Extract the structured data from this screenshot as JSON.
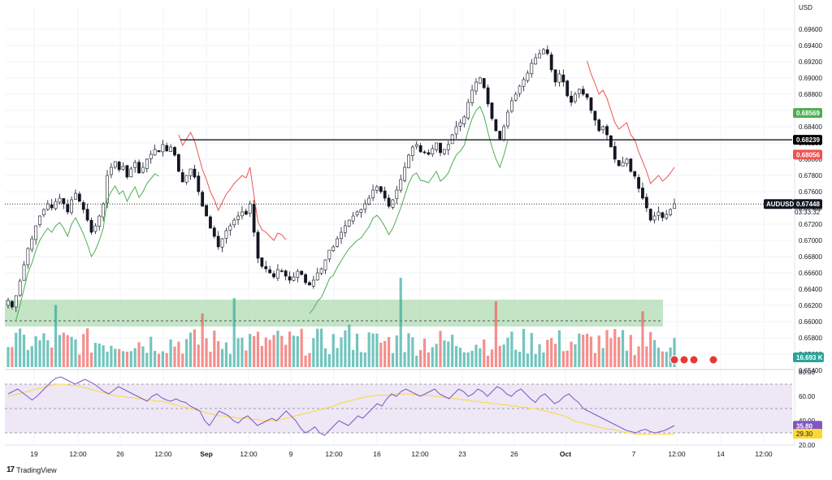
{
  "price_axis": {
    "currency": "USD",
    "ticks": [
      "0.69600",
      "0.69400",
      "0.69200",
      "0.69000",
      "0.68800",
      "0.68600",
      "0.68400",
      "0.68200",
      "0.68000",
      "0.67800",
      "0.67600",
      "0.67400",
      "0.67200",
      "0.67000",
      "0.66800",
      "0.66600",
      "0.66400",
      "0.66200",
      "0.66000",
      "0.65800",
      "0.65600",
      "0.65400"
    ]
  },
  "time_axis": [
    "19",
    "12:00",
    "26",
    "12:00",
    "Sep",
    "12:00",
    "9",
    "12:00",
    "16",
    "12:00",
    "23",
    "26",
    "Oct",
    "7",
    "12:00",
    "14",
    "12:00"
  ],
  "symbol": {
    "name": "AUDUSD",
    "last_price": "0.67448",
    "countdown": "03:33:32",
    "color": "#131722"
  },
  "horizontal_level": {
    "value": "0.68239",
    "color": "#000000"
  },
  "supertrend_labels": {
    "up": {
      "value": "0.68569",
      "color": "#4caf50"
    },
    "down": {
      "value": "0.68056",
      "color": "#ef5350"
    }
  },
  "volume_label": {
    "value": "16.693 K",
    "color": "#26a69a"
  },
  "rsi": {
    "ticks": [
      "80.00",
      "60.00",
      "40.00",
      "20.00"
    ],
    "value": "35.80",
    "value_color": "#7e57c2",
    "ma_value": "29.30",
    "ma_color": "#fdd835",
    "upper": 70,
    "lower": 30,
    "range": [
      20,
      80
    ]
  },
  "branding": {
    "logo_text": "TradingView"
  },
  "colors": {
    "up": "#26a69a",
    "down": "#ef5350",
    "grid": "#f0f3fa",
    "rsi_line": "#7e57c2",
    "rsi_band": "#ede7f6",
    "demand_zone": "#a5d6a7"
  },
  "chart_data": {
    "type": "candlestick",
    "symbol": "AUDUSD",
    "ylim": [
      0.654,
      0.697
    ],
    "demand_zone": [
      0.6594,
      0.6627
    ],
    "level": 0.68239,
    "close_series": [
      0.6626,
      0.6618,
      0.6632,
      0.665,
      0.667,
      0.669,
      0.6702,
      0.6718,
      0.673,
      0.6738,
      0.6745,
      0.674,
      0.6748,
      0.6752,
      0.6745,
      0.6735,
      0.675,
      0.6758,
      0.6748,
      0.6738,
      0.6725,
      0.671,
      0.6718,
      0.673,
      0.6745,
      0.678,
      0.679,
      0.6797,
      0.6787,
      0.6791,
      0.6778,
      0.6788,
      0.6796,
      0.6783,
      0.679,
      0.68,
      0.6806,
      0.6812,
      0.6809,
      0.6818,
      0.681,
      0.6815,
      0.6805,
      0.6785,
      0.6772,
      0.678,
      0.6788,
      0.6778,
      0.676,
      0.6742,
      0.673,
      0.6715,
      0.6705,
      0.6692,
      0.6702,
      0.6712,
      0.6718,
      0.6725,
      0.673,
      0.6735,
      0.6732,
      0.6745,
      0.671,
      0.6678,
      0.6668,
      0.6665,
      0.666,
      0.6655,
      0.6664,
      0.6662,
      0.6656,
      0.6651,
      0.6655,
      0.6662,
      0.6658,
      0.6648,
      0.6645,
      0.6651,
      0.666,
      0.6665,
      0.6676,
      0.6688,
      0.6692,
      0.6702,
      0.671,
      0.6718,
      0.6725,
      0.673,
      0.6735,
      0.6738,
      0.6745,
      0.6752,
      0.6762,
      0.6766,
      0.676,
      0.6752,
      0.6742,
      0.675,
      0.6762,
      0.6775,
      0.679,
      0.6805,
      0.6815,
      0.6818,
      0.6809,
      0.6808,
      0.6806,
      0.6813,
      0.682,
      0.6808,
      0.6812,
      0.6818,
      0.683,
      0.684,
      0.6845,
      0.6852,
      0.687,
      0.6885,
      0.6895,
      0.69,
      0.6888,
      0.6868,
      0.685,
      0.6835,
      0.6825,
      0.684,
      0.6858,
      0.6872,
      0.688,
      0.689,
      0.6898,
      0.6906,
      0.6918,
      0.6925,
      0.693,
      0.6935,
      0.693,
      0.691,
      0.6895,
      0.6905,
      0.6895,
      0.6878,
      0.687,
      0.688,
      0.6886,
      0.688,
      0.6876,
      0.686,
      0.6848,
      0.6835,
      0.684,
      0.683,
      0.6815,
      0.68,
      0.6792,
      0.6796,
      0.68,
      0.6785,
      0.6779,
      0.6764,
      0.6752,
      0.674,
      0.6725,
      0.673,
      0.6735,
      0.6728,
      0.6732,
      0.6738,
      0.6745
    ],
    "rsi_series": [
      62,
      64,
      66,
      63,
      60,
      57,
      60,
      64,
      68,
      72,
      75,
      76,
      74,
      72,
      70,
      72,
      74,
      72,
      70,
      67,
      64,
      62,
      65,
      68,
      66,
      64,
      62,
      60,
      58,
      56,
      60,
      62,
      59,
      57,
      56,
      58,
      56,
      55,
      52,
      50,
      48,
      40,
      36,
      42,
      48,
      46,
      44,
      40,
      38,
      42,
      44,
      40,
      36,
      38,
      40,
      42,
      40,
      44,
      48,
      44,
      40,
      34,
      30,
      32,
      35,
      30,
      28,
      32,
      36,
      40,
      38,
      36,
      40,
      44,
      42,
      46,
      50,
      54,
      52,
      58,
      62,
      60,
      64,
      66,
      64,
      62,
      60,
      62,
      64,
      66,
      62,
      60,
      58,
      62,
      66,
      64,
      60,
      62,
      66,
      64,
      60,
      64,
      68,
      66,
      62,
      60,
      64,
      66,
      62,
      58,
      55,
      60,
      62,
      58,
      54,
      56,
      60,
      62,
      58,
      55,
      50,
      48,
      46,
      44,
      42,
      40,
      38,
      36,
      34,
      32,
      31,
      30,
      32,
      33,
      31,
      30,
      31,
      32,
      34,
      36
    ],
    "rsi_ma_series": [
      60,
      61,
      62,
      63,
      64,
      65,
      66,
      67,
      68,
      69,
      70,
      70,
      70,
      69,
      69,
      68,
      67,
      66,
      65,
      64,
      63,
      62,
      61,
      60,
      60,
      59,
      59,
      58,
      58,
      57,
      57,
      56,
      56,
      55,
      54,
      53,
      52,
      51,
      50,
      49,
      48,
      47,
      46,
      45,
      44,
      44,
      43,
      43,
      42,
      42,
      42,
      41,
      41,
      40,
      40,
      40,
      40,
      41,
      42,
      43,
      44,
      45,
      46,
      47,
      48,
      49,
      50,
      51,
      52,
      54,
      55,
      56,
      57,
      58,
      59,
      60,
      60,
      61,
      61,
      61,
      61,
      62,
      62,
      62,
      62,
      61,
      61,
      61,
      61,
      60,
      60,
      59,
      59,
      58,
      58,
      57,
      57,
      56,
      56,
      55,
      55,
      54,
      54,
      53,
      53,
      52,
      52,
      51,
      51,
      50,
      50,
      49,
      48,
      47,
      46,
      45,
      44,
      42,
      40,
      39,
      38,
      37,
      36,
      35,
      34,
      33,
      33,
      32,
      31,
      30,
      30,
      29,
      29,
      29,
      29,
      29,
      29,
      29,
      29,
      29
    ]
  }
}
